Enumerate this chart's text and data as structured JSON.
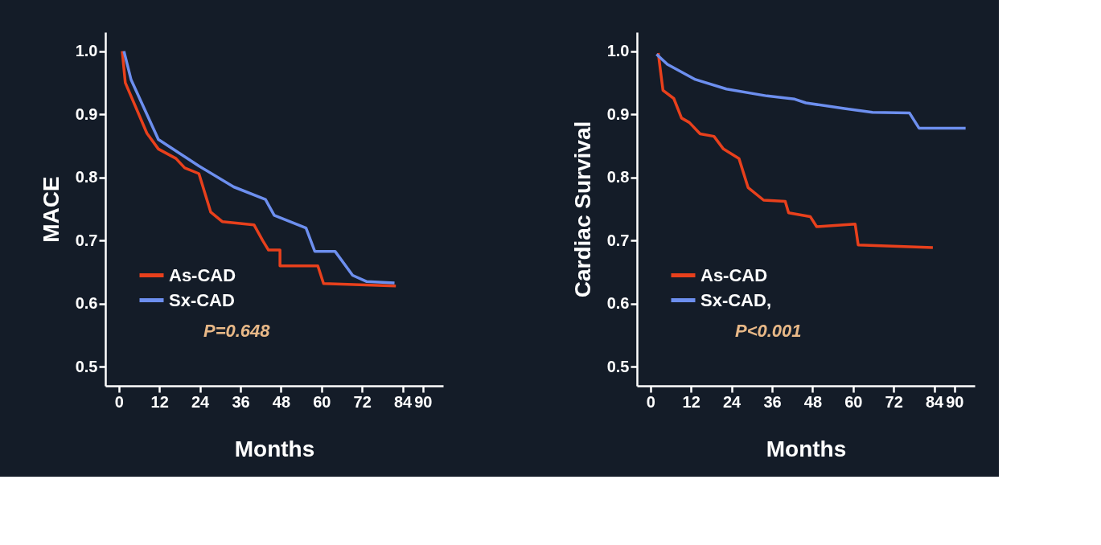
{
  "chart_data": [
    {
      "type": "line",
      "xlabel": "Months",
      "ylabel": "MACE",
      "xlim": [
        -4,
        96
      ],
      "ylim": [
        0.47,
        1.03
      ],
      "xticks": [
        0,
        12,
        24,
        36,
        48,
        60,
        72,
        84,
        90
      ],
      "yticks": [
        0.5,
        0.6,
        0.7,
        0.8,
        0.9,
        {
          "value": 1.0,
          "label": "1.0"
        }
      ],
      "grid": false,
      "legend": "bottom left",
      "marker": "none",
      "line_style": "solid",
      "annotations": [
        "P=0.648"
      ],
      "series": [
        {
          "name": "As-CAD",
          "color": "#e8401c",
          "x": [
            1,
            1.9,
            8.3,
            11.7,
            16.9,
            19.5,
            23.7,
            27.2,
            30.6,
            40,
            42.6,
            44.3,
            47.7,
            47.7,
            58.9,
            60.6,
            82
          ],
          "values": [
            1.0,
            0.95,
            0.87,
            0.845,
            0.83,
            0.815,
            0.806,
            0.745,
            0.73,
            0.725,
            0.7,
            0.685,
            0.685,
            0.66,
            0.66,
            0.632,
            0.628
          ]
        },
        {
          "name": "Sx-CAD",
          "color": "#6d8fef",
          "x": [
            1.5,
            3.6,
            11.7,
            23.7,
            34,
            43.4,
            46,
            55.4,
            58,
            64,
            69.2,
            73.4,
            81.6
          ],
          "values": [
            1.0,
            0.955,
            0.86,
            0.818,
            0.785,
            0.765,
            0.74,
            0.72,
            0.683,
            0.683,
            0.645,
            0.635,
            0.633
          ]
        }
      ]
    },
    {
      "type": "line",
      "xlabel": "Months",
      "ylabel": "Cardiac Survival",
      "xlim": [
        -4,
        96
      ],
      "ylim": [
        0.47,
        1.03
      ],
      "xticks": [
        0,
        12,
        24,
        36,
        48,
        60,
        72,
        84,
        90
      ],
      "yticks": [
        0.5,
        0.6,
        0.7,
        0.8,
        0.9,
        {
          "value": 1.0,
          "label": "1.0"
        }
      ],
      "grid": false,
      "legend": "bottom left",
      "marker": "none",
      "line_style": "solid",
      "annotations": [
        "P<0.001"
      ],
      "series": [
        {
          "name": "As-CAD",
          "color": "#e8401c",
          "x": [
            2.3,
            3.7,
            6.9,
            9.2,
            11.5,
            14.7,
            18.8,
            21.6,
            26.2,
            28.9,
            33.5,
            39.9,
            40.9,
            47.3,
            49.2,
            60.6,
            61.5,
            83.6
          ],
          "values": [
            0.997,
            0.938,
            0.925,
            0.894,
            0.887,
            0.869,
            0.865,
            0.845,
            0.83,
            0.784,
            0.764,
            0.762,
            0.744,
            0.738,
            0.722,
            0.726,
            0.693,
            0.689
          ]
        },
        {
          "name": "Sx-CAD,",
          "color": "#6d8fef",
          "x": [
            1.8,
            5,
            13.3,
            22.5,
            34.5,
            42.7,
            46,
            57.4,
            65.7,
            76.7,
            79.5,
            93.3
          ],
          "values": [
            0.995,
            0.979,
            0.955,
            0.94,
            0.929,
            0.924,
            0.918,
            0.909,
            0.903,
            0.902,
            0.878,
            0.878
          ]
        }
      ]
    }
  ]
}
